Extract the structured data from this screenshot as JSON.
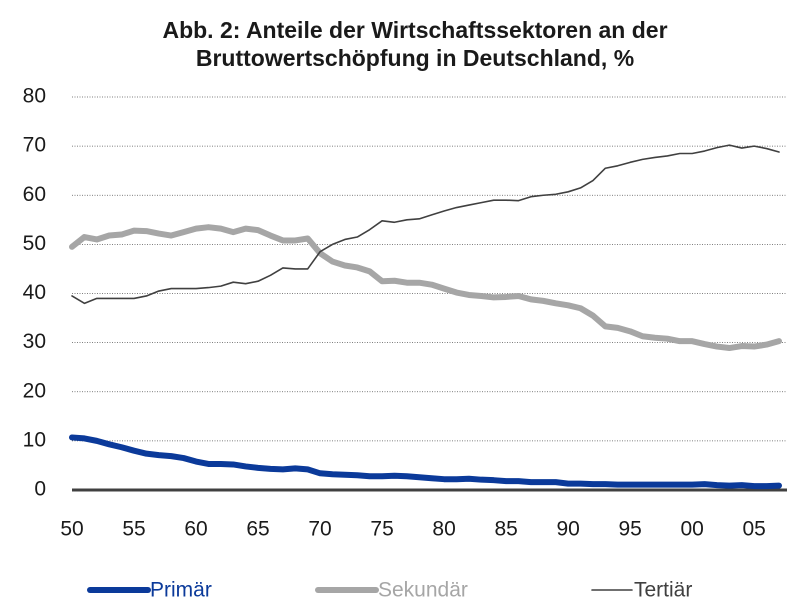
{
  "chart_data": {
    "type": "line",
    "title": [
      "Abb. 2: Anteile der Wirtschaftssektoren an der",
      "Bruttowertschöpfung in Deutschland, %"
    ],
    "categories": [
      "50",
      null,
      null,
      null,
      null,
      "55",
      null,
      null,
      null,
      null,
      "60",
      null,
      null,
      null,
      null,
      "65",
      null,
      null,
      null,
      null,
      "70",
      null,
      null,
      null,
      null,
      "75",
      null,
      null,
      null,
      null,
      "80",
      null,
      null,
      null,
      null,
      "85",
      null,
      null,
      null,
      null,
      "90",
      null,
      null,
      null,
      null,
      "95",
      null,
      null,
      null,
      null,
      "00",
      null,
      null,
      null,
      null,
      "05",
      null,
      null
    ],
    "series": [
      {
        "name": "Primär",
        "color": "#0b3a9a",
        "values": [
          10.7,
          10.5,
          10,
          9.3,
          8.7,
          8,
          7.4,
          7.1,
          6.9,
          6.5,
          5.8,
          5.3,
          5.3,
          5.2,
          4.8,
          4.5,
          4.3,
          4.2,
          4.4,
          4.2,
          3.4,
          3.2,
          3.1,
          3.0,
          2.8,
          2.8,
          2.9,
          2.8,
          2.6,
          2.4,
          2.2,
          2.2,
          2.3,
          2.1,
          2.0,
          1.8,
          1.8,
          1.6,
          1.6,
          1.6,
          1.3,
          1.3,
          1.2,
          1.2,
          1.1,
          1.1,
          1.1,
          1.1,
          1.1,
          1.1,
          1.1,
          1.2,
          1.0,
          0.9,
          1.0,
          0.8,
          0.8,
          0.9
        ]
      },
      {
        "name": "Sekundär",
        "color": "#a6a6a6",
        "values": [
          49.5,
          51.5,
          51,
          51.8,
          52,
          52.8,
          52.7,
          52.2,
          51.8,
          52.5,
          53.2,
          53.5,
          53.2,
          52.5,
          53.2,
          52.9,
          51.8,
          50.8,
          50.8,
          51.2,
          48.2,
          46.5,
          45.7,
          45.3,
          44.5,
          42.5,
          42.6,
          42.2,
          42.2,
          41.8,
          41,
          40.2,
          39.7,
          39.5,
          39.2,
          39.3,
          39.5,
          38.8,
          38.5,
          38,
          37.6,
          37,
          35.5,
          33.3,
          33,
          32.3,
          31.3,
          31,
          30.8,
          30.3,
          30.3,
          29.7,
          29.2,
          28.9,
          29.3,
          29.2,
          29.6,
          30.3
        ]
      },
      {
        "name": "Tertiär",
        "color": "#404040",
        "values": [
          39.5,
          38,
          39,
          39,
          39,
          39,
          39.5,
          40.5,
          41,
          41,
          41,
          41.2,
          41.5,
          42.3,
          42,
          42.5,
          43.7,
          45.2,
          45,
          45,
          48.5,
          50,
          51,
          51.5,
          53,
          54.8,
          54.5,
          55,
          55.2,
          56,
          56.8,
          57.5,
          58,
          58.5,
          59,
          59,
          58.9,
          59.7,
          60,
          60.2,
          60.7,
          61.5,
          63,
          65.5,
          66,
          66.7,
          67.3,
          67.7,
          68,
          68.5,
          68.5,
          69,
          69.7,
          70.2,
          69.6,
          70,
          69.5,
          68.8
        ]
      }
    ],
    "ylim": [
      0,
      80
    ],
    "yticks": [
      0,
      10,
      20,
      30,
      40,
      50,
      60,
      70,
      80
    ],
    "grid": true,
    "legend": "bottom"
  }
}
